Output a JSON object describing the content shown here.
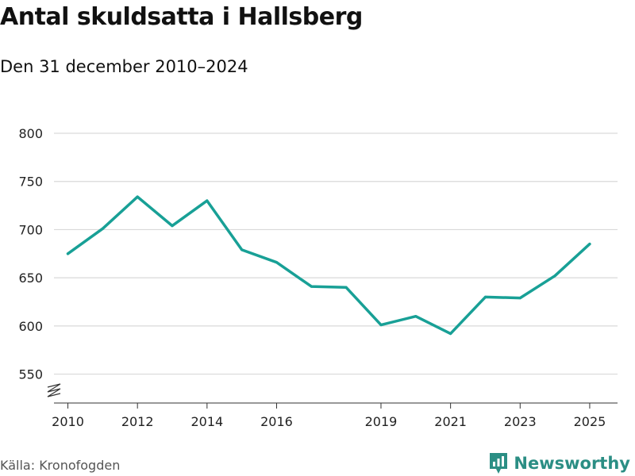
{
  "title": "Antal skuldsatta i Hallsberg",
  "subtitle": "Den 31 december 2010–2024",
  "source": "Källa: Kronofogden",
  "brand": {
    "name": "Newsworthy",
    "icon": "newsworthy-logo-icon"
  },
  "colors": {
    "line": "#18a096",
    "grid": "#d9d9d9",
    "axis": "#333333",
    "brand": "#2b8e84"
  },
  "chart_data": {
    "type": "line",
    "title": "Antal skuldsatta i Hallsberg",
    "subtitle": "Den 31 december 2010–2024",
    "xlabel": "",
    "ylabel": "",
    "x": [
      2010,
      2011,
      2012,
      2013,
      2014,
      2015,
      2016,
      2017,
      2018,
      2019,
      2020,
      2021,
      2022,
      2023,
      2024,
      2025
    ],
    "values": [
      675,
      701,
      734,
      704,
      730,
      679,
      666,
      641,
      640,
      601,
      610,
      592,
      630,
      629,
      652,
      685
    ],
    "xlim": [
      2009.6,
      2025.8
    ],
    "ylim": [
      520,
      800
    ],
    "yticks": [
      550,
      600,
      650,
      700,
      750,
      800
    ],
    "ytick_labels": [
      "550",
      "600",
      "650",
      "700",
      "750",
      "800"
    ],
    "xticks": [
      2010,
      2012,
      2014,
      2016,
      2019,
      2021,
      2023,
      2025
    ],
    "xtick_labels": [
      "2010",
      "2012",
      "2014",
      "2016",
      "2019",
      "2021",
      "2023",
      "2025"
    ],
    "axis_break": true,
    "grid": true
  }
}
